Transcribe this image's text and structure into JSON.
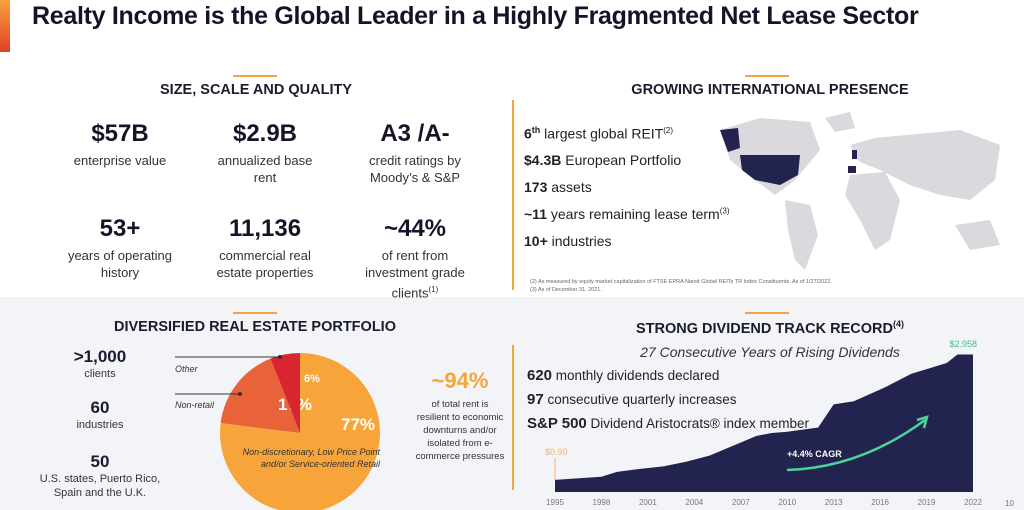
{
  "title": "Realty Income is the Global Leader in a Highly Fragmented Net Lease Sector",
  "size": {
    "heading": "SIZE, SCALE AND QUALITY",
    "stats": [
      {
        "value": "$57B",
        "label": "enterprise value"
      },
      {
        "value": "$2.9B",
        "label": "annualized base rent"
      },
      {
        "value": "A3 /A-",
        "label": "credit ratings by Moody’s & S&P"
      },
      {
        "value": "53+",
        "label": "years of operating history"
      },
      {
        "value": "11,136",
        "label": "commercial real estate properties"
      },
      {
        "value": "~44%",
        "label": "of rent from investment grade clients",
        "sup": "(1)"
      }
    ]
  },
  "intl": {
    "heading": "GROWING INTERNATIONAL PRESENCE",
    "items": [
      {
        "bold": "6",
        "sup": "th",
        "text": " largest global REIT",
        "note": "(2)"
      },
      {
        "bold": "$4.3B",
        "text": " European Portfolio"
      },
      {
        "bold": "173",
        "text": " assets"
      },
      {
        "bold": "~11",
        "text": " years remaining lease term",
        "note": "(3)"
      },
      {
        "bold": "10+",
        "text": " industries"
      }
    ],
    "footnotes": [
      "(2) As measured by equity market capitalization of FTSE EPRA Nareit Global REITs TR Index Constituents. As of 1/27/2022.",
      "(3) As of December 31, 2021."
    ],
    "highlight_color": "#23234f",
    "map_color": "#d9d9de"
  },
  "portfolio": {
    "heading": "DIVERSIFIED REAL ESTATE PORTFOLIO",
    "stats": [
      {
        "value": ">1,000",
        "label": "clients"
      },
      {
        "value": "60",
        "label": "industries"
      },
      {
        "value": "50",
        "label": "U.S. states, Puerto Rico, Spain and the U.K."
      }
    ],
    "resilient": {
      "value": "~94%",
      "label": "of total rent is resilient to economic downturns and/or isolated from e-commerce pressures"
    }
  },
  "pie": {
    "type": "pie",
    "slices": [
      {
        "label": "Non-discretionary, Low Price Point and/or Service-oriented Retail",
        "value": 77,
        "display": "77%",
        "color": "#f7a43a"
      },
      {
        "label": "Non-retail",
        "value": 17,
        "display": "17%",
        "color": "#e8623a"
      },
      {
        "label": "Other",
        "value": 6,
        "display": "6%",
        "color": "#d8252f"
      }
    ]
  },
  "dividend": {
    "heading": "STRONG DIVIDEND TRACK RECORD",
    "heading_sup": "(4)",
    "subtitle": "27 Consecutive Years of Rising Dividends",
    "items": [
      {
        "bold": "620",
        "text": " monthly dividends declared"
      },
      {
        "bold": "97",
        "text": " consecutive quarterly increases"
      },
      {
        "bold": "S&P 500",
        "text": " Dividend Aristocrats® index member"
      }
    ]
  },
  "chart_data": {
    "type": "area",
    "color": "#23234f",
    "x_ticks": [
      "1995",
      "1998",
      "2001",
      "2004",
      "2007",
      "2010",
      "2013",
      "2016",
      "2019",
      "2022"
    ],
    "points": [
      [
        1995,
        0.9
      ],
      [
        1998,
        0.95
      ],
      [
        1999,
        1.03
      ],
      [
        2000.5,
        1.08
      ],
      [
        2002,
        1.12
      ],
      [
        2003.5,
        1.2
      ],
      [
        2005,
        1.3
      ],
      [
        2006.5,
        1.46
      ],
      [
        2008,
        1.62
      ],
      [
        2009,
        1.67
      ],
      [
        2010,
        1.69
      ],
      [
        2012,
        1.76
      ],
      [
        2013,
        2.14
      ],
      [
        2014.3,
        2.19
      ],
      [
        2016.4,
        2.43
      ],
      [
        2018,
        2.64
      ],
      [
        2020.3,
        2.82
      ],
      [
        2021,
        2.958
      ],
      [
        2022,
        2.958
      ]
    ],
    "start_label": "$0.90",
    "end_label": "$2.958",
    "cagr_label": "+4.4% CAGR",
    "ylim": [
      0.7,
      3.0
    ]
  },
  "page_number": "10"
}
